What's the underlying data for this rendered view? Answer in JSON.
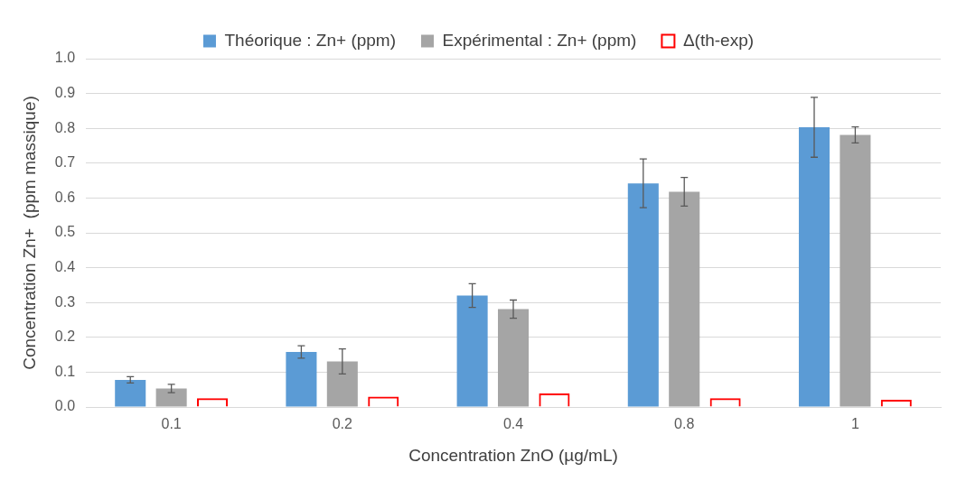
{
  "chart_data": {
    "type": "bar",
    "xlabel": "Concentration ZnO (µg/mL)",
    "ylabel": "Concentration Zn+  (ppm massique)",
    "categories": [
      "0.1",
      "0.2",
      "0.4",
      "0.8",
      "1"
    ],
    "series": [
      {
        "name": "Théorique : Zn+ (ppm)",
        "color": "#5b9bd5",
        "values": [
          0.078,
          0.158,
          0.32,
          0.642,
          0.803
        ],
        "errors": [
          0.009,
          0.018,
          0.034,
          0.07,
          0.086
        ]
      },
      {
        "name": "Expérimental : Zn+ (ppm)",
        "color": "#a5a5a5",
        "values": [
          0.053,
          0.131,
          0.281,
          0.618,
          0.781
        ],
        "errors": [
          0.012,
          0.036,
          0.026,
          0.041,
          0.023
        ]
      },
      {
        "name": "Δ(th-exp)",
        "color": "#ff0000",
        "values": [
          0.025,
          0.03,
          0.039,
          0.025,
          0.021
        ]
      }
    ],
    "ylim": [
      0,
      1
    ],
    "yticks": [
      {
        "value": 0,
        "label": "0.0"
      },
      {
        "value": 0.1,
        "label": "0.1"
      },
      {
        "value": 0.2,
        "label": "0.2"
      },
      {
        "value": 0.3,
        "label": "0.3"
      },
      {
        "value": 0.4,
        "label": "0.4"
      },
      {
        "value": 0.5,
        "label": "0.5"
      },
      {
        "value": 0.6,
        "label": "0.6"
      },
      {
        "value": 0.7,
        "label": "0.7"
      },
      {
        "value": 0.8,
        "label": "0.8"
      },
      {
        "value": 0.9,
        "label": "0.9"
      },
      {
        "value": 1,
        "label": "1.0"
      }
    ],
    "grid": "y",
    "legend": "top"
  }
}
